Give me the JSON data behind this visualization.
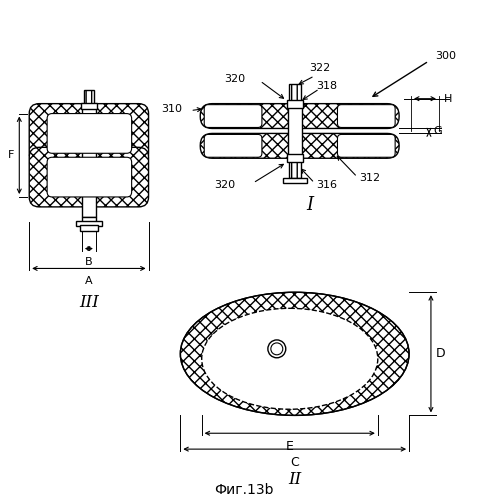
{
  "title": "Фиг.13b",
  "bg_color": "#ffffff",
  "label_I": "I",
  "label_II": "II",
  "label_III": "III",
  "ref_300": "300",
  "ref_322": "322",
  "ref_320a": "320",
  "ref_320b": "320",
  "ref_318": "318",
  "ref_316": "316",
  "ref_312": "312",
  "ref_310": "310",
  "ref_H": "H",
  "ref_G": "G",
  "ref_A": "A",
  "ref_B": "B",
  "ref_F": "F",
  "ref_C": "C",
  "ref_D": "D",
  "ref_E": "E",
  "line_color": "#000000"
}
